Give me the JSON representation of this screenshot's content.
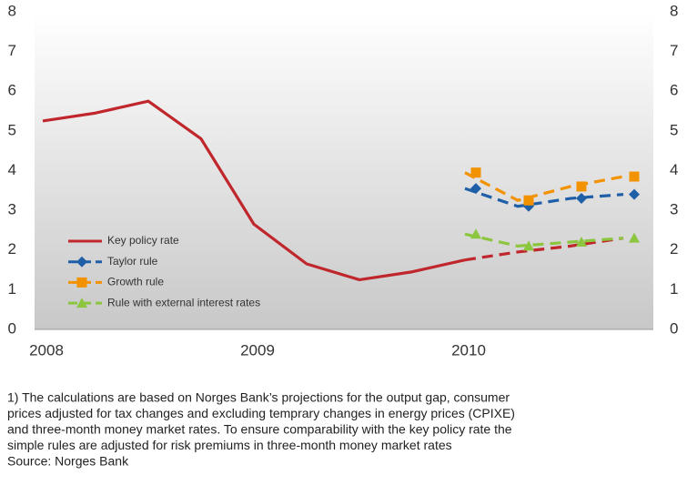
{
  "chart_data": {
    "type": "line",
    "categories": [
      "2008",
      null,
      null,
      null,
      "2009",
      null,
      null,
      null,
      "2010",
      null,
      null,
      null
    ],
    "series": [
      {
        "name": "Key policy rate",
        "color": "#c0272d",
        "marker": "none",
        "dashed_from": 8,
        "values": [
          5.25,
          5.45,
          5.75,
          4.8,
          2.65,
          1.65,
          1.25,
          1.45,
          1.75,
          1.95,
          2.1,
          2.3
        ]
      },
      {
        "name": "Taylor rule",
        "color": "#1f5fa8",
        "marker": "diamond",
        "dashed_from": 0,
        "values": [
          null,
          null,
          null,
          null,
          null,
          null,
          null,
          null,
          3.55,
          3.1,
          3.3,
          3.4
        ]
      },
      {
        "name": "Growth rule",
        "color": "#f39200",
        "marker": "square",
        "dashed_from": 0,
        "values": [
          null,
          null,
          null,
          null,
          null,
          null,
          null,
          null,
          3.95,
          3.25,
          3.6,
          3.85
        ]
      },
      {
        "name": "Rule with external interest rates",
        "color": "#8cc63f",
        "marker": "triangle",
        "dashed_from": 0,
        "values": [
          null,
          null,
          null,
          null,
          null,
          null,
          null,
          null,
          2.4,
          2.1,
          2.2,
          2.3
        ]
      }
    ],
    "ylim": [
      0,
      8
    ],
    "yticks": [
      0,
      1,
      2,
      3,
      4,
      5,
      6,
      7,
      8
    ],
    "y2lim": [
      0,
      8
    ],
    "y2ticks": [
      0,
      1,
      2,
      3,
      4,
      5,
      6,
      7,
      8
    ],
    "legend": "bottom-left",
    "grid": false
  },
  "footnote": [
    "1) The calculations are based on Norges Bank’s projections for the output gap, consumer",
    "prices adjusted for tax changes and excluding temprary changes in energy prices (CPIXE)",
    "and three-month money market rates. To ensure comparability with the key policy rate the",
    "simple rules are adjusted for risk premiums in three-month money market rates"
  ],
  "source": "Source: Norges Bank"
}
